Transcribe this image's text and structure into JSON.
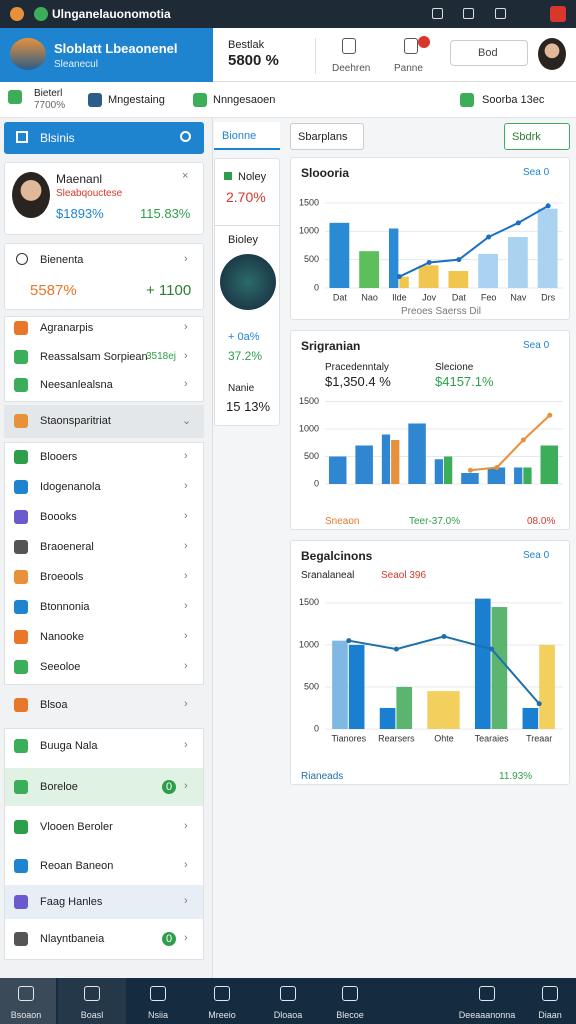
{
  "topbar": {
    "title": "Ulnganelauonomotia"
  },
  "header": {
    "brand": "Sloblatt Lbeaonenel",
    "brand_sub": "Sleanecul",
    "stat_label": "Bestlak",
    "stat_value": "5800 %",
    "nav": [
      "Deehren",
      "Panne"
    ],
    "search": "Bod"
  },
  "subbar": {
    "status": "Bieterl",
    "status_sub": "7700%",
    "tabs": [
      "Mngestaing",
      "Nnngesaoen"
    ],
    "right": "Soorba 13ec"
  },
  "sidebar": {
    "title": "Blsinis",
    "profile": {
      "name": "Maenanl",
      "role": "Sleabqouctese",
      "stat1": "$1893%",
      "stat2": "115.83%"
    },
    "summary": {
      "label": "Bienenta",
      "stat1": "5587%",
      "stat2": "+ 1100"
    },
    "items_a": [
      {
        "label": "Agranarpis"
      },
      {
        "label": "Reassalsam Sorpiean",
        "note": "3518ej"
      },
      {
        "label": "Neesanlealsna"
      }
    ],
    "section": "Staonsparitriat",
    "items_b": [
      {
        "label": "Blooers"
      },
      {
        "label": "Idogenanola"
      },
      {
        "label": "Boooks"
      },
      {
        "label": "Braoeneral"
      },
      {
        "label": "Broeools"
      },
      {
        "label": "Btonnonia"
      },
      {
        "label": "Nanooke"
      },
      {
        "label": "Seeoloe"
      }
    ],
    "single": "Blsoa",
    "items_c": [
      {
        "label": "Buuga Nala"
      },
      {
        "label": "Boreloe",
        "badge": "0"
      },
      {
        "label": "Vlooen Beroler"
      },
      {
        "label": "Reoan Baneon"
      },
      {
        "label": "Faag Hanles"
      },
      {
        "label": "Nlayntbaneia",
        "badge": "0"
      }
    ]
  },
  "middle": {
    "title": "Bionne",
    "card_label": "Noley",
    "card_value": "2.70%",
    "label": "Bioley",
    "stat1": "+ 0a%",
    "stat2": "37.2%",
    "label2": "Nanie",
    "stat3": "15 13%"
  },
  "toolbar": {
    "left": "Sbarplans",
    "right": "Sbdrk"
  },
  "charts": [
    {
      "type": "bar",
      "title": "Sloooria",
      "badge": "Sea 0",
      "categories": [
        "Dat",
        "Nao",
        "Ilde",
        "Jov",
        "Dat",
        "Feo",
        "Nav",
        "Drs"
      ],
      "ylim": [
        0,
        1500
      ],
      "yticks": [
        0,
        500,
        1000,
        1500
      ],
      "series": [
        {
          "type": "bar",
          "color": "#2a8bd4",
          "values": [
            1150,
            null,
            1050,
            null,
            null,
            null,
            null,
            null
          ]
        },
        {
          "type": "bar",
          "color": "#5cbf5c",
          "values": [
            null,
            650,
            null,
            null,
            null,
            null,
            null,
            null
          ]
        },
        {
          "type": "bar",
          "color": "#f0c64e",
          "values": [
            null,
            null,
            200,
            400,
            300,
            null,
            null,
            null
          ]
        },
        {
          "type": "bar",
          "color": "#a9d3f0",
          "values": [
            null,
            null,
            null,
            null,
            null,
            600,
            900,
            1400
          ]
        },
        {
          "type": "line",
          "color": "#1a6fc4",
          "values": [
            null,
            null,
            200,
            450,
            500,
            900,
            1150,
            1450
          ]
        }
      ],
      "footer": [
        "Preoes Saerss Dil"
      ]
    },
    {
      "type": "bar",
      "title": "Srigranian",
      "badge": "Sea 0",
      "subtitles": [
        {
          "label": "Pracedenntaly",
          "value": "$1,350.4 %"
        },
        {
          "label": "Slecione",
          "value": "$4157.1%"
        }
      ],
      "categories": [
        null,
        null,
        null,
        null,
        null,
        null,
        null,
        null,
        null
      ],
      "ylim": [
        0,
        1600
      ],
      "yticks": [
        0,
        500,
        1000,
        1500
      ],
      "series": [
        {
          "type": "bar",
          "color": "#2f86d1",
          "values": [
            500,
            700,
            900,
            1100,
            450,
            200,
            300,
            300,
            null
          ]
        },
        {
          "type": "bar",
          "color": "#e8913a",
          "values": [
            null,
            null,
            800,
            null,
            null,
            null,
            null,
            null,
            null
          ]
        },
        {
          "type": "bar",
          "color": "#3cae5a",
          "values": [
            null,
            null,
            null,
            null,
            500,
            null,
            null,
            300,
            700
          ]
        },
        {
          "type": "line",
          "color": "#e8913a",
          "values": [
            null,
            null,
            null,
            null,
            null,
            250,
            300,
            800,
            1250
          ]
        }
      ],
      "footer": [
        "Sneaon",
        "Teer-37.0%",
        "08.0%"
      ]
    },
    {
      "type": "bar",
      "title": "Begalcinons",
      "badge": "Sea 0",
      "subtitles": [
        {
          "label": "Sranalaneal",
          "value": "Seaol 396"
        }
      ],
      "categories": [
        "Tianores",
        "Rearsers",
        "Ohte",
        "Tearaies",
        "Treaar"
      ],
      "ylim": [
        0,
        1700
      ],
      "yticks": [
        0,
        500,
        1000,
        1500
      ],
      "series": [
        {
          "type": "bar",
          "color": "#7fb8e3",
          "values": [
            1050,
            null,
            null,
            null,
            null
          ]
        },
        {
          "type": "bar",
          "color": "#1a7fd0",
          "values": [
            1000,
            250,
            null,
            1550,
            250
          ]
        },
        {
          "type": "bar",
          "color": "#5cb56e",
          "values": [
            null,
            500,
            null,
            1450,
            null
          ]
        },
        {
          "type": "bar",
          "color": "#f3cf5e",
          "values": [
            null,
            null,
            450,
            null,
            1000
          ]
        },
        {
          "type": "line",
          "color": "#1f6fa8",
          "values": [
            1050,
            950,
            1100,
            950,
            300
          ]
        }
      ],
      "footer": [
        "Rianeads",
        "11.93%"
      ]
    }
  ],
  "bottom_nav": [
    "Bsoaon",
    "Boasl",
    "Nsiia",
    "Mreeio",
    "Dloaoa",
    "Blecoe",
    "Deeaaanonna",
    "Diaan"
  ]
}
